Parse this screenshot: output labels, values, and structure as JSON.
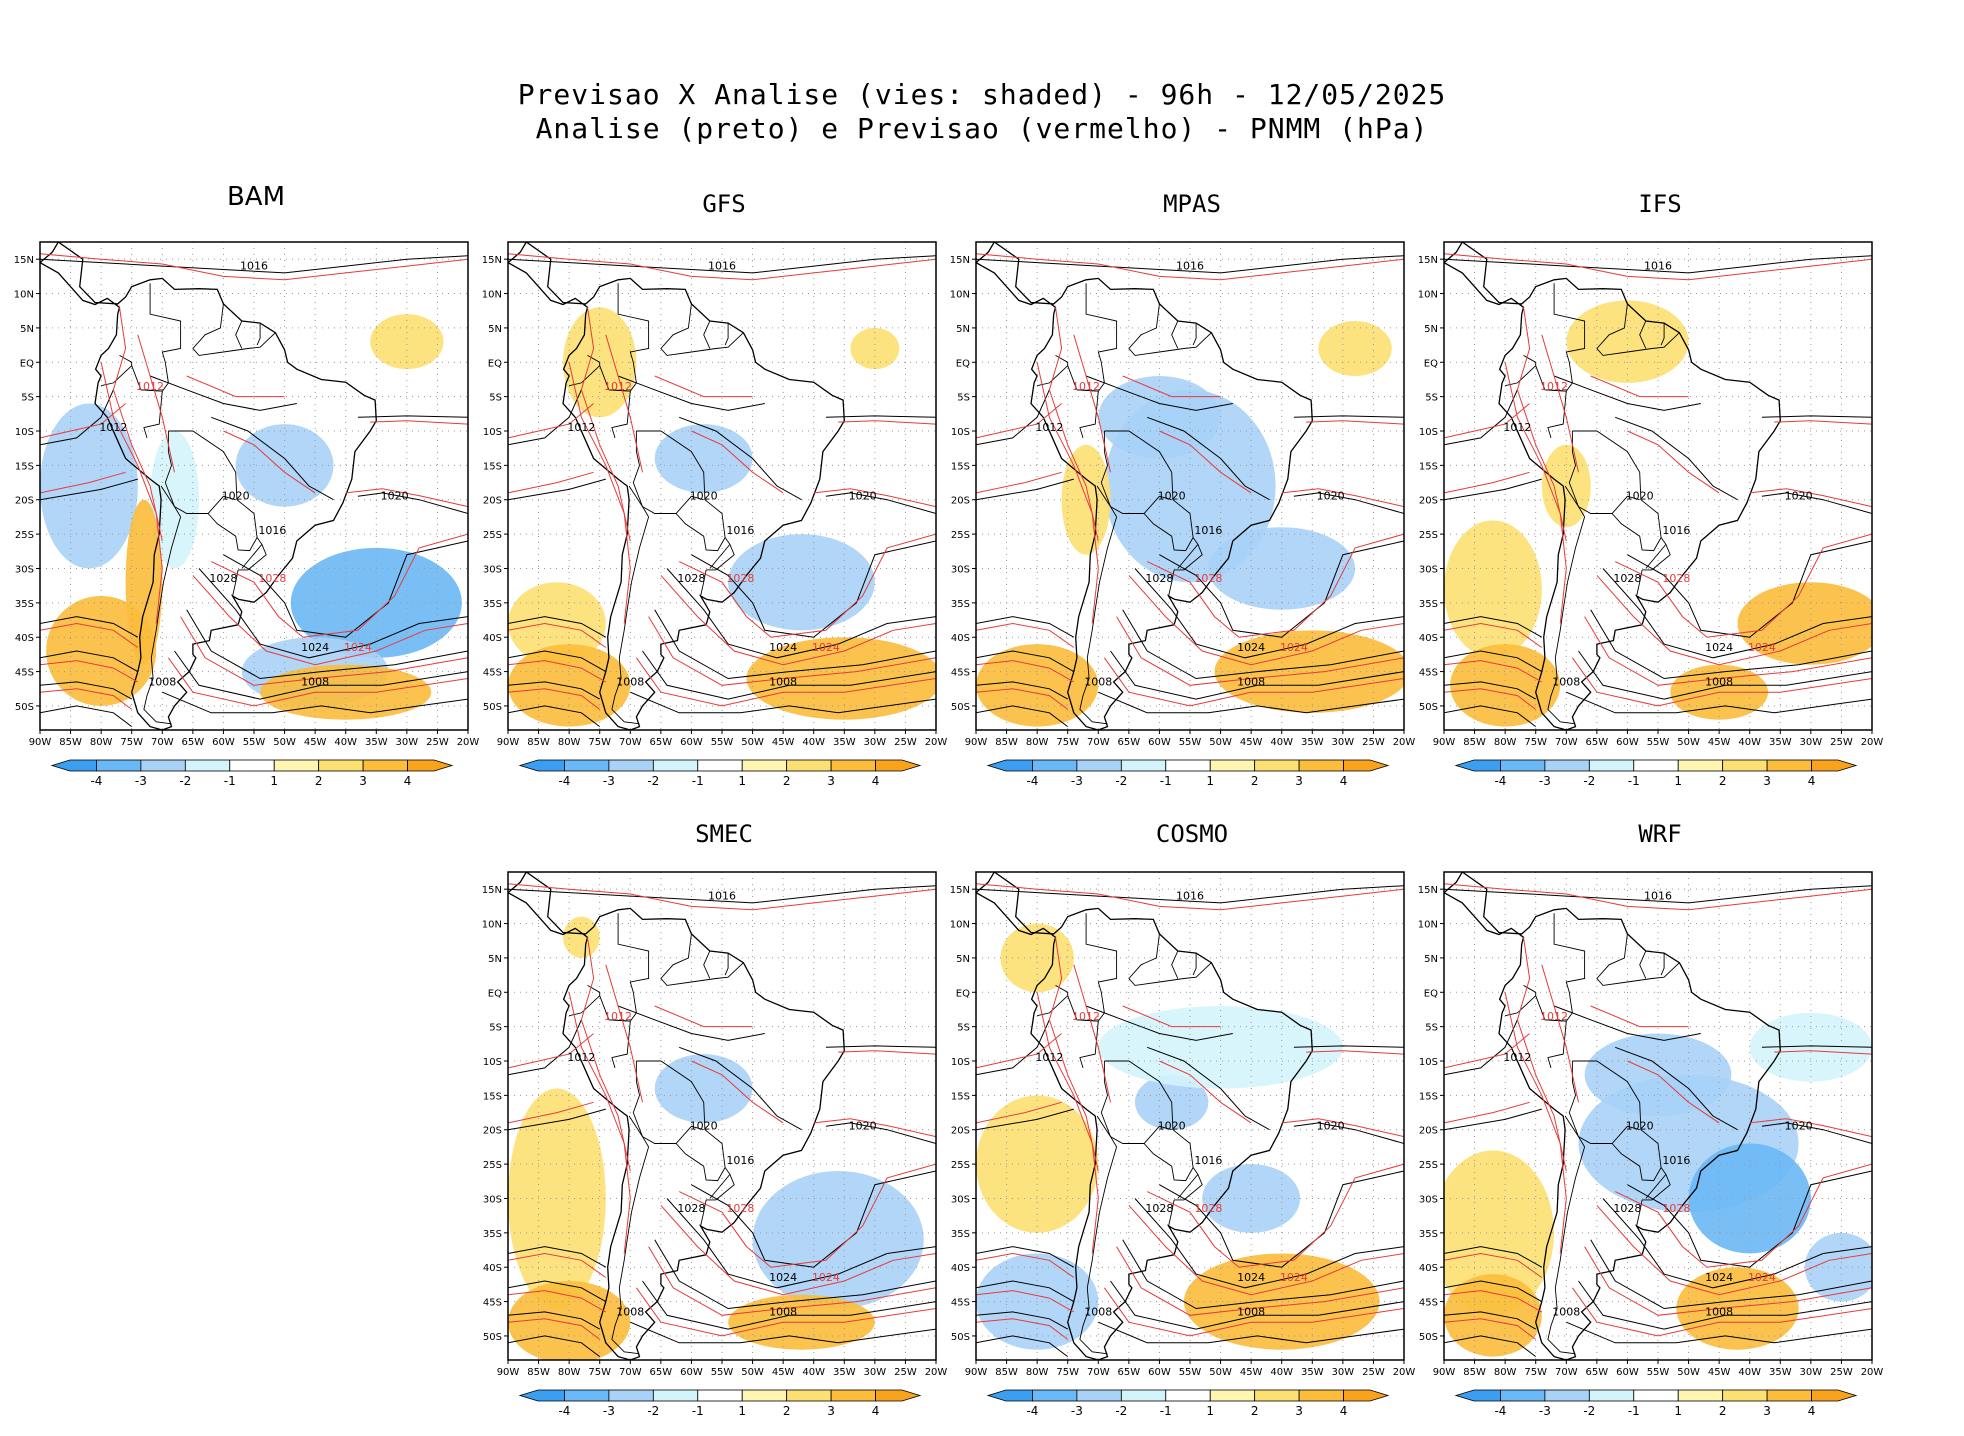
{
  "header": {
    "title_line1": "Previsao X Analise (vies: shaded) - 96h - 12/05/2025",
    "title_line2": "Analise (preto) e Previsao (vermelho) - PNMM (hPa)"
  },
  "axes": {
    "lat_labels": [
      "15N",
      "10N",
      "5N",
      "EQ",
      "5S",
      "10S",
      "15S",
      "20S",
      "25S",
      "30S",
      "35S",
      "40S",
      "45S",
      "50S"
    ],
    "lon_labels": [
      "90W",
      "85W",
      "80W",
      "75W",
      "70W",
      "65W",
      "60W",
      "55W",
      "50W",
      "45W",
      "40W",
      "35W",
      "30W",
      "25W",
      "20W"
    ]
  },
  "colorbar": {
    "labels": [
      "-4",
      "-3",
      "-2",
      "-1",
      "1",
      "2",
      "3",
      "4"
    ],
    "colors": [
      "#3b9ef0",
      "#6ab8f5",
      "#a8d2f7",
      "#d4f4fb",
      "#ffffff",
      "#fdf5b0",
      "#fde072",
      "#fbbd3a",
      "#f9a21b"
    ]
  },
  "colors": {
    "analysis_contour": "#000000",
    "forecast_contour": "#e83a3a",
    "forecast_label": "#e83a3a",
    "grid": "#9a9a9a"
  },
  "panels": [
    {
      "name": "BAM",
      "labels": [
        [
          "1016",
          "1016"
        ],
        [
          "1012",
          "1012"
        ],
        [
          "1020",
          "1020"
        ],
        [
          "1024",
          "1024"
        ],
        [
          "1008",
          "1008"
        ],
        [
          "1028",
          "1028"
        ]
      ]
    },
    {
      "name": "GFS",
      "labels": [
        [
          "1016",
          "1016"
        ],
        [
          "1012",
          "1012"
        ],
        [
          "1020",
          "1020"
        ],
        [
          "1024",
          "1024"
        ],
        [
          "1008",
          "1008"
        ],
        [
          "1028",
          "1028"
        ]
      ]
    },
    {
      "name": "MPAS",
      "labels": [
        [
          "1016",
          "1016"
        ],
        [
          "1012",
          "1012"
        ],
        [
          "1020",
          "1020"
        ],
        [
          "1024",
          "1024"
        ],
        [
          "1008",
          "1008"
        ],
        [
          "1028",
          "1028"
        ]
      ]
    },
    {
      "name": "IFS",
      "labels": [
        [
          "1016",
          "1016"
        ],
        [
          "1012",
          "1012"
        ],
        [
          "1020",
          "1020"
        ],
        [
          "1024",
          "1024"
        ],
        [
          "1008",
          "1008"
        ],
        [
          "1028",
          "1028"
        ]
      ]
    },
    {
      "name": "SMEC",
      "labels": [
        [
          "1016",
          "1016"
        ],
        [
          "1012",
          "1012"
        ],
        [
          "1020",
          "1020"
        ],
        [
          "1024",
          "1024"
        ],
        [
          "1008",
          "1008"
        ],
        [
          "1028",
          "1028"
        ]
      ]
    },
    {
      "name": "COSMO",
      "labels": [
        [
          "1016",
          "1016"
        ],
        [
          "1012",
          "1012"
        ],
        [
          "1020",
          "1020"
        ],
        [
          "1024",
          "1024"
        ],
        [
          "1008",
          "1008"
        ],
        [
          "1028",
          "1028"
        ]
      ]
    },
    {
      "name": "WRF",
      "labels": [
        [
          "1016",
          "1016"
        ],
        [
          "1012",
          "1012"
        ],
        [
          "1020",
          "1020"
        ],
        [
          "1024",
          "1024"
        ],
        [
          "1008",
          "1008"
        ],
        [
          "1028",
          "1028"
        ]
      ]
    }
  ]
}
